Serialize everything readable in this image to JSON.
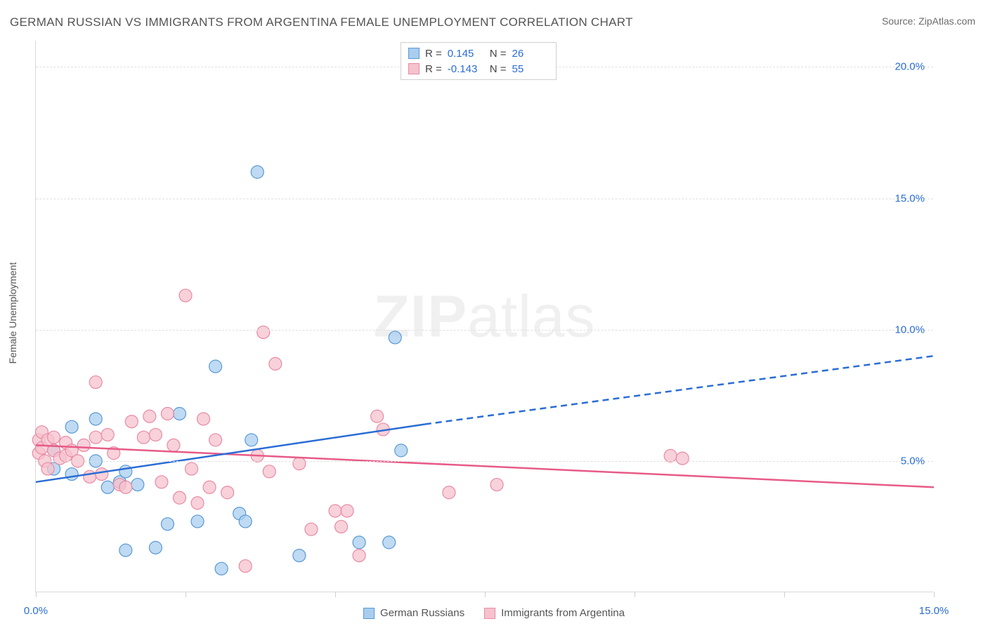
{
  "title": "GERMAN RUSSIAN VS IMMIGRANTS FROM ARGENTINA FEMALE UNEMPLOYMENT CORRELATION CHART",
  "source_label": "Source: ZipAtlas.com",
  "watermark_big": "ZIP",
  "watermark_small": "atlas",
  "ylabel": "Female Unemployment",
  "chart": {
    "type": "scatter",
    "xlim": [
      0,
      15
    ],
    "ylim": [
      0,
      21
    ],
    "grid_y": [
      5,
      10,
      15,
      20
    ],
    "y_tick_labels": [
      "5.0%",
      "10.0%",
      "15.0%",
      "20.0%"
    ],
    "y_tick_color": "#2a6dd4",
    "x_ticks": [
      0,
      2.5,
      5,
      7.5,
      10,
      12.5,
      15
    ],
    "x_tick_labels": {
      "0": "0.0%",
      "15": "15.0%"
    },
    "x_tick_color": "#2a6dd4",
    "gridline_color": "#e0e0e0",
    "axis_color": "#d9d9d9",
    "background": "#ffffff"
  },
  "stats_box": {
    "rows": [
      {
        "series": "s1",
        "R_label": "R =",
        "R": "0.145",
        "N_label": "N =",
        "N": "26"
      },
      {
        "series": "s2",
        "R_label": "R =",
        "R": "-0.143",
        "N_label": "N =",
        "N": "55"
      }
    ]
  },
  "legend": {
    "items": [
      {
        "series": "s1",
        "label": "German Russians"
      },
      {
        "series": "s2",
        "label": "Immigrants from Argentina"
      }
    ]
  },
  "series": {
    "s1": {
      "name": "German Russians",
      "color_fill": "#a9cdef",
      "color_stroke": "#5a99d6",
      "marker_radius": 9,
      "marker_opacity": 0.75,
      "trend": {
        "solid": {
          "x1": 0.0,
          "y1": 4.2,
          "x2": 6.5,
          "y2": 6.4
        },
        "dashed": {
          "x1": 6.5,
          "y1": 6.4,
          "x2": 15.0,
          "y2": 9.0
        },
        "stroke": "#2a6dd4",
        "width": 2.5,
        "dash": "9 6"
      },
      "points": [
        {
          "x": 0.3,
          "y": 4.7
        },
        {
          "x": 0.3,
          "y": 5.4
        },
        {
          "x": 0.6,
          "y": 6.3
        },
        {
          "x": 0.6,
          "y": 4.5
        },
        {
          "x": 1.0,
          "y": 5.0
        },
        {
          "x": 1.0,
          "y": 6.6
        },
        {
          "x": 1.2,
          "y": 4.0
        },
        {
          "x": 1.4,
          "y": 4.2
        },
        {
          "x": 1.5,
          "y": 4.6
        },
        {
          "x": 1.5,
          "y": 1.6
        },
        {
          "x": 1.7,
          "y": 4.1
        },
        {
          "x": 2.0,
          "y": 1.7
        },
        {
          "x": 2.2,
          "y": 2.6
        },
        {
          "x": 2.4,
          "y": 6.8
        },
        {
          "x": 2.7,
          "y": 2.7
        },
        {
          "x": 3.0,
          "y": 8.6
        },
        {
          "x": 3.1,
          "y": 0.9
        },
        {
          "x": 3.4,
          "y": 3.0
        },
        {
          "x": 3.5,
          "y": 2.7
        },
        {
          "x": 3.6,
          "y": 5.8
        },
        {
          "x": 3.7,
          "y": 16.0
        },
        {
          "x": 4.4,
          "y": 1.4
        },
        {
          "x": 5.4,
          "y": 1.9
        },
        {
          "x": 5.9,
          "y": 1.9
        },
        {
          "x": 6.0,
          "y": 9.7
        },
        {
          "x": 6.1,
          "y": 5.4
        }
      ]
    },
    "s2": {
      "name": "Immigrants from Argentina",
      "color_fill": "#f6c2ce",
      "color_stroke": "#e98aa4",
      "marker_radius": 9,
      "marker_opacity": 0.75,
      "trend": {
        "solid": {
          "x1": 0.0,
          "y1": 5.6,
          "x2": 15.0,
          "y2": 4.0
        },
        "stroke": "#e75b87",
        "width": 2.5
      },
      "points": [
        {
          "x": 0.05,
          "y": 5.8
        },
        {
          "x": 0.05,
          "y": 5.3
        },
        {
          "x": 0.1,
          "y": 6.1
        },
        {
          "x": 0.1,
          "y": 5.5
        },
        {
          "x": 0.15,
          "y": 5.0
        },
        {
          "x": 0.2,
          "y": 5.8
        },
        {
          "x": 0.2,
          "y": 4.7
        },
        {
          "x": 0.3,
          "y": 5.4
        },
        {
          "x": 0.3,
          "y": 5.9
        },
        {
          "x": 0.4,
          "y": 5.1
        },
        {
          "x": 0.5,
          "y": 5.2
        },
        {
          "x": 0.5,
          "y": 5.7
        },
        {
          "x": 0.6,
          "y": 5.4
        },
        {
          "x": 0.7,
          "y": 5.0
        },
        {
          "x": 0.8,
          "y": 5.6
        },
        {
          "x": 0.9,
          "y": 4.4
        },
        {
          "x": 1.0,
          "y": 5.9
        },
        {
          "x": 1.0,
          "y": 8.0
        },
        {
          "x": 1.1,
          "y": 4.5
        },
        {
          "x": 1.2,
          "y": 6.0
        },
        {
          "x": 1.3,
          "y": 5.3
        },
        {
          "x": 1.4,
          "y": 4.1
        },
        {
          "x": 1.5,
          "y": 4.0
        },
        {
          "x": 1.6,
          "y": 6.5
        },
        {
          "x": 1.8,
          "y": 5.9
        },
        {
          "x": 1.9,
          "y": 6.7
        },
        {
          "x": 2.0,
          "y": 6.0
        },
        {
          "x": 2.1,
          "y": 4.2
        },
        {
          "x": 2.2,
          "y": 6.8
        },
        {
          "x": 2.3,
          "y": 5.6
        },
        {
          "x": 2.4,
          "y": 3.6
        },
        {
          "x": 2.5,
          "y": 11.3
        },
        {
          "x": 2.6,
          "y": 4.7
        },
        {
          "x": 2.7,
          "y": 3.4
        },
        {
          "x": 2.8,
          "y": 6.6
        },
        {
          "x": 2.9,
          "y": 4.0
        },
        {
          "x": 3.0,
          "y": 5.8
        },
        {
          "x": 3.2,
          "y": 3.8
        },
        {
          "x": 3.5,
          "y": 1.0
        },
        {
          "x": 3.7,
          "y": 5.2
        },
        {
          "x": 3.8,
          "y": 9.9
        },
        {
          "x": 3.9,
          "y": 4.6
        },
        {
          "x": 4.0,
          "y": 8.7
        },
        {
          "x": 4.4,
          "y": 4.9
        },
        {
          "x": 4.6,
          "y": 2.4
        },
        {
          "x": 5.0,
          "y": 3.1
        },
        {
          "x": 5.1,
          "y": 2.5
        },
        {
          "x": 5.2,
          "y": 3.1
        },
        {
          "x": 5.4,
          "y": 1.4
        },
        {
          "x": 5.7,
          "y": 6.7
        },
        {
          "x": 5.8,
          "y": 6.2
        },
        {
          "x": 6.9,
          "y": 3.8
        },
        {
          "x": 7.7,
          "y": 4.1
        },
        {
          "x": 10.6,
          "y": 5.2
        },
        {
          "x": 10.8,
          "y": 5.1
        }
      ]
    }
  }
}
